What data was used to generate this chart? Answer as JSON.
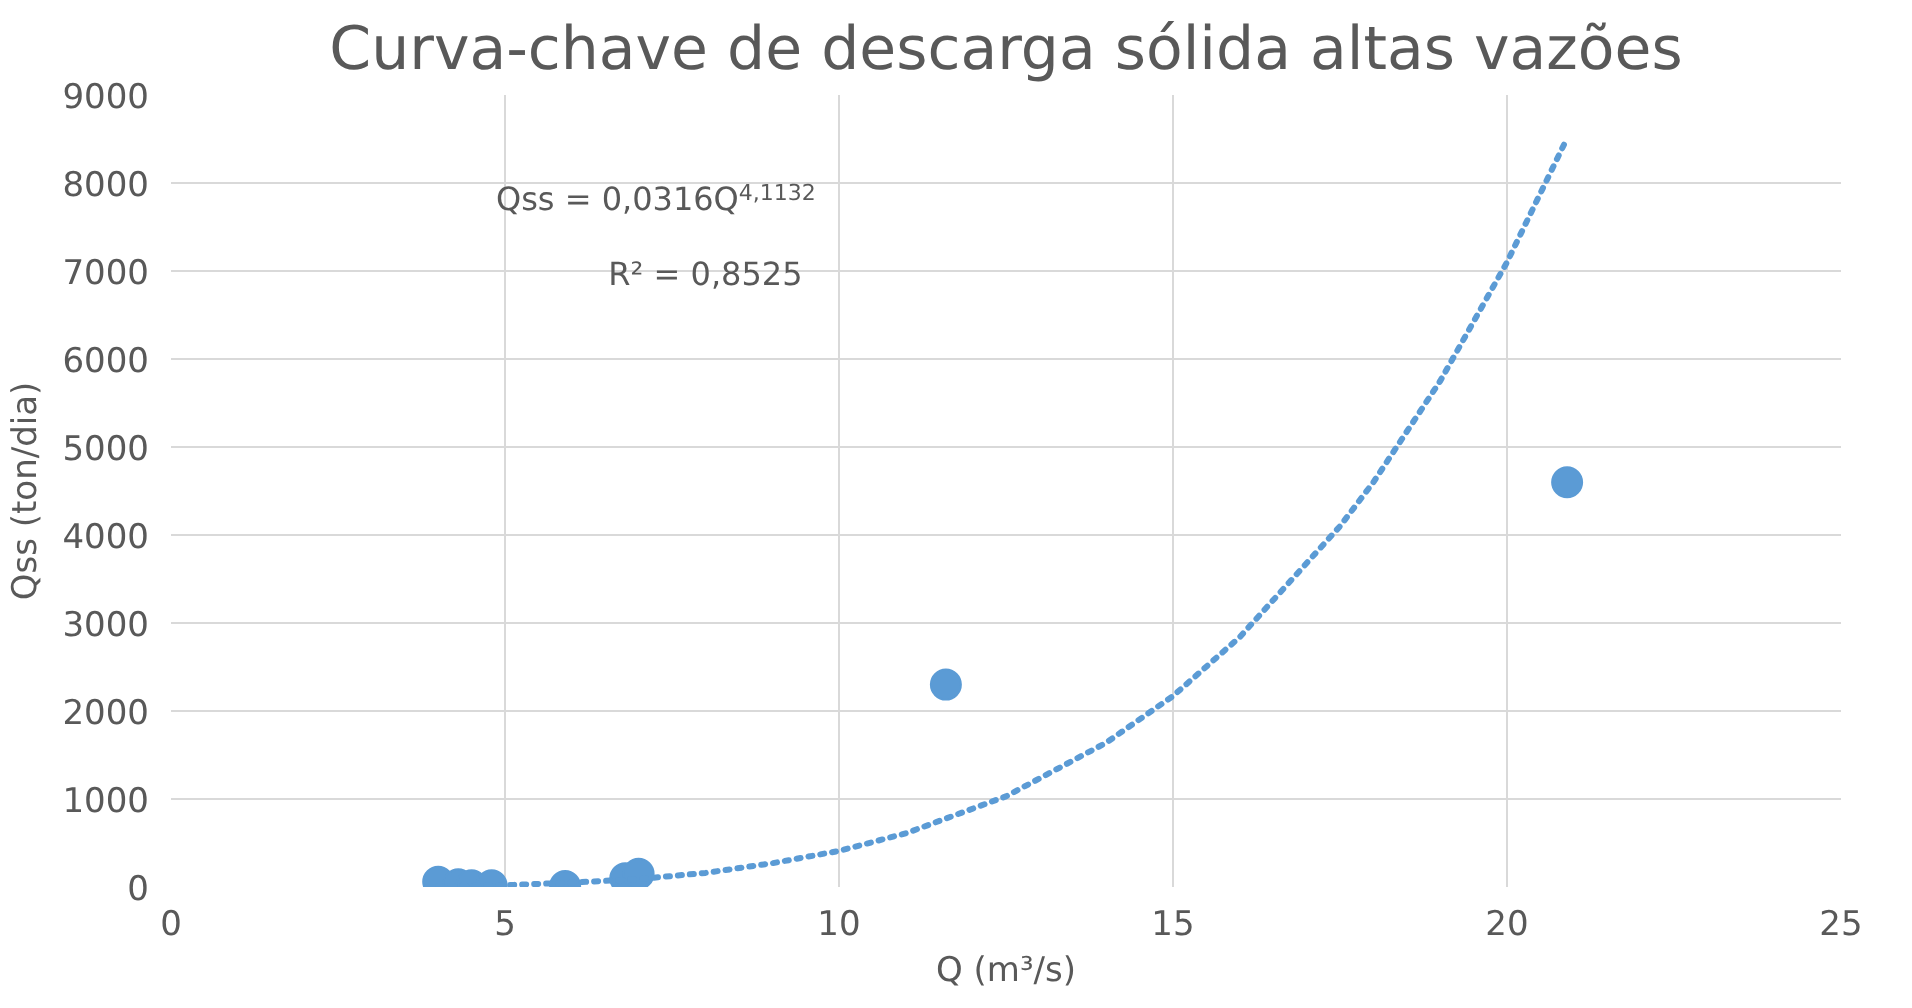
{
  "chart_data": {
    "type": "scatter",
    "title": "Curva-chave de descarga sólida altas vazões",
    "xlabel": "Q (m³/s)",
    "ylabel": "Qss (ton/dia)",
    "xlim": [
      0,
      25
    ],
    "xticks": [
      0,
      5,
      10,
      15,
      20,
      25
    ],
    "ylim": [
      0,
      9000
    ],
    "yticks": [
      0,
      1000,
      2000,
      3000,
      4000,
      5000,
      6000,
      7000,
      8000,
      9000
    ],
    "grid": true,
    "marker": "circle",
    "annotations": [
      "Qss = 0,0316Q$^{4,1132}$",
      "R² = 0,8525"
    ],
    "series": [
      {
        "color": "#5b9bd5",
        "x": [
          4.0,
          4.3,
          4.5,
          4.8,
          5.9,
          6.8,
          7.0,
          11.6,
          20.9
        ],
        "values": [
          60,
          30,
          20,
          20,
          10,
          100,
          150,
          2300,
          4600
        ]
      },
      {
        "type": "line",
        "line_style": "dotted",
        "marker": "none",
        "color": "#5b9bd5",
        "x": [
          4,
          5,
          6,
          7,
          8,
          9,
          10,
          11,
          12.5,
          14,
          15,
          16,
          17.5,
          18,
          19,
          20,
          20.9
        ],
        "values": [
          10,
          20,
          50,
          90,
          160,
          270,
          410,
          610,
          1030,
          1640,
          2170,
          2840,
          4100,
          4600,
          5750,
          7100,
          8510
        ]
      }
    ]
  }
}
